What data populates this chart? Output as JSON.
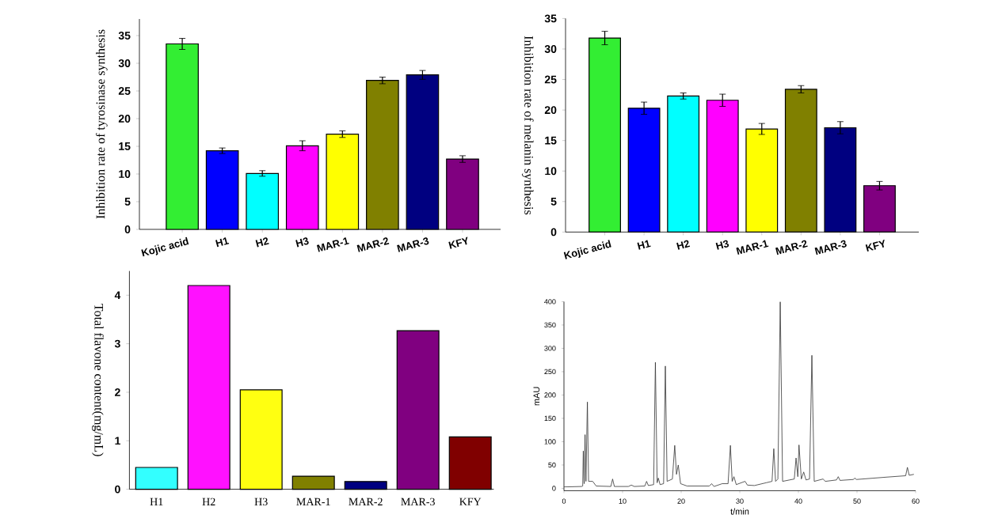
{
  "chart_data": [
    {
      "type": "bar",
      "ylabel": "Inhibition rate of tyrosinase synthesis",
      "categories": [
        "Kojic acid",
        "H1",
        "H2",
        "H3",
        "MAR-1",
        "MAR-2",
        "MAR-3",
        "KFY"
      ],
      "values": [
        33.5,
        14.2,
        10.1,
        15.1,
        17.2,
        26.9,
        27.9,
        12.7
      ],
      "errors": [
        1.0,
        0.5,
        0.5,
        0.9,
        0.6,
        0.6,
        0.8,
        0.6
      ],
      "colors": [
        "#33ee33",
        "#0000ff",
        "#00ffff",
        "#ff00ff",
        "#ffff00",
        "#808000",
        "#000080",
        "#800080"
      ],
      "ylim": [
        0,
        38
      ],
      "yticks": [
        0,
        5,
        10,
        15,
        20,
        25,
        30,
        35
      ]
    },
    {
      "type": "bar",
      "ylabel": "Inhibition rate of melanin synthesis",
      "categories": [
        "Kojic acid",
        "H1",
        "H2",
        "H3",
        "MAR-1",
        "MAR-2",
        "MAR-3",
        "KFY"
      ],
      "values": [
        31.8,
        20.3,
        22.3,
        21.6,
        16.9,
        23.4,
        17.1,
        7.6
      ],
      "errors": [
        1.1,
        1.0,
        0.5,
        1.0,
        0.9,
        0.6,
        1.0,
        0.7
      ],
      "colors": [
        "#33ee33",
        "#0000ff",
        "#00ffff",
        "#ff00ff",
        "#ffff00",
        "#808000",
        "#000080",
        "#800080"
      ],
      "ylim": [
        0,
        35
      ],
      "yticks": [
        0,
        5,
        10,
        15,
        20,
        25,
        30,
        35
      ]
    },
    {
      "type": "bar",
      "ylabel": "Total flavone content(mg/mL)",
      "categories": [
        "H1",
        "H2",
        "H3",
        "MAR-1",
        "MAR-2",
        "MAR-3",
        "KFY"
      ],
      "values": [
        0.45,
        4.2,
        2.05,
        0.27,
        0.16,
        3.27,
        1.08
      ],
      "colors": [
        "#33ffff",
        "#ff11ff",
        "#ffff11",
        "#808000",
        "#000080",
        "#800080",
        "#800000"
      ],
      "ylim": [
        0,
        4.5
      ],
      "yticks": [
        0,
        1,
        2,
        3,
        4
      ]
    },
    {
      "type": "line",
      "xlabel": "t/min",
      "ylabel": "mAU",
      "color": "#333333",
      "x": [
        0,
        3,
        3.2,
        3.3,
        3.45,
        3.6,
        3.75,
        4.0,
        4.2,
        4.9,
        5.5,
        8.0,
        8.3,
        8.6,
        11,
        11.5,
        12,
        13.8,
        14.1,
        14.4,
        15.3,
        15.6,
        15.9,
        16.1,
        16.4,
        17.0,
        17.3,
        17.6,
        18.5,
        18.9,
        19.2,
        19.5,
        19.9,
        21,
        24.8,
        25.2,
        25.6,
        27,
        28.0,
        28.4,
        28.7,
        29,
        29.4,
        30.9,
        31.3,
        32.5,
        34.5,
        35.5,
        35.8,
        36.1,
        36.5,
        36.9,
        37.3,
        38.5,
        39.3,
        39.6,
        39.9,
        40.1,
        40.5,
        40.9,
        41.3,
        41.9,
        42.3,
        42.7,
        44.2,
        44.6,
        46.5,
        46.8,
        47.1,
        49.4,
        49.6,
        49.9,
        55,
        58.3,
        58.6,
        58.9,
        59.7
      ],
      "values": [
        3,
        4,
        5,
        80,
        10,
        115,
        15,
        185,
        15,
        15,
        5,
        4,
        20,
        4,
        4,
        7,
        4,
        5,
        15,
        6,
        8,
        270,
        12,
        22,
        8,
        10,
        262,
        15,
        20,
        92,
        30,
        50,
        10,
        5,
        5,
        10,
        4,
        10,
        10,
        92,
        15,
        25,
        8,
        15,
        7,
        6,
        12,
        15,
        85,
        15,
        20,
        400,
        15,
        18,
        20,
        65,
        25,
        93,
        20,
        35,
        18,
        20,
        285,
        15,
        20,
        15,
        18,
        25,
        17,
        19,
        22,
        19,
        24,
        27,
        45,
        28,
        30
      ],
      "xlim": [
        0,
        60
      ],
      "xticks": [
        0,
        10,
        20,
        30,
        40,
        50,
        60
      ],
      "ylim": [
        -5,
        400
      ],
      "yticks": [
        0,
        50,
        100,
        150,
        200,
        250,
        300,
        350,
        400
      ]
    }
  ]
}
